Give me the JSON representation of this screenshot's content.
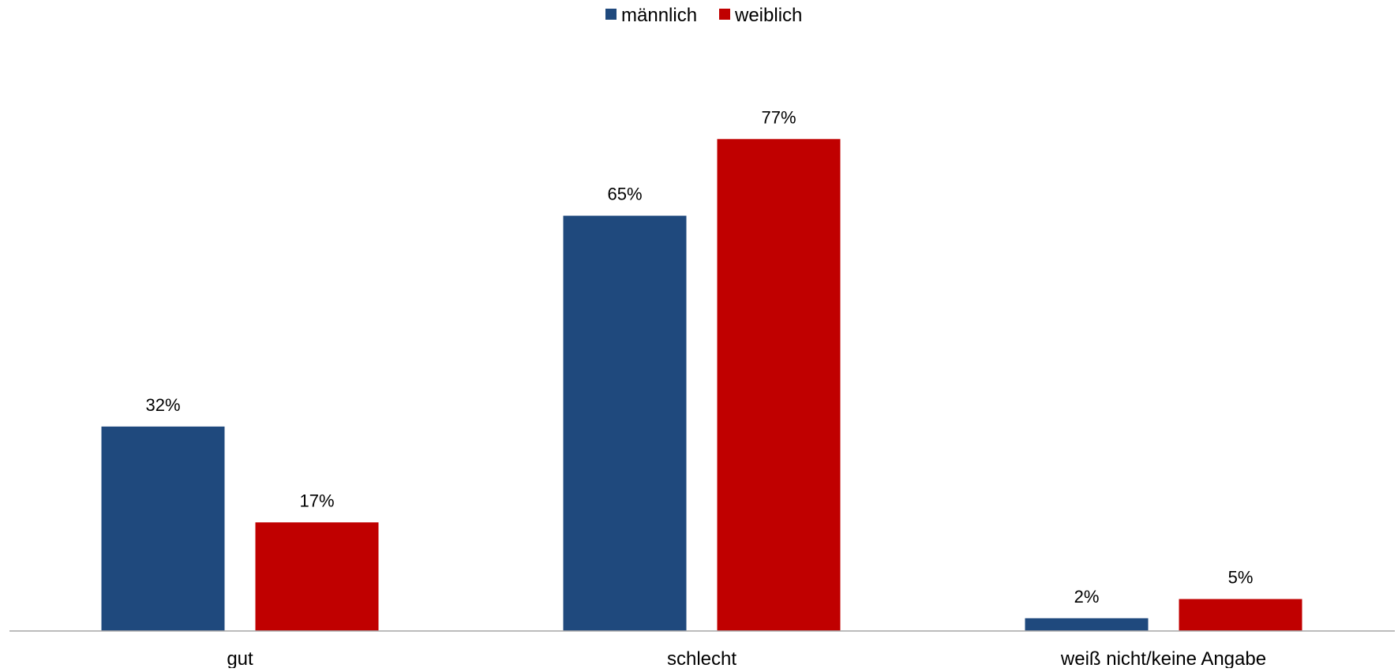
{
  "chart_data": {
    "type": "bar",
    "categories": [
      "gut",
      "schlecht",
      "weiß nicht/keine Angabe"
    ],
    "series": [
      {
        "name": "männlich",
        "values": [
          32,
          65,
          2
        ],
        "labels": [
          "32%",
          "65%",
          "2%"
        ],
        "color": "#1f497d"
      },
      {
        "name": "weiblich",
        "values": [
          17,
          77,
          5
        ],
        "labels": [
          "17%",
          "77%",
          "5%"
        ],
        "color": "#c00000"
      }
    ],
    "title": "",
    "xlabel": "",
    "ylabel": "",
    "ylim": [
      0,
      100
    ],
    "grid": false,
    "legend_position": "top-center",
    "axis_color": "#a6a6a6"
  }
}
